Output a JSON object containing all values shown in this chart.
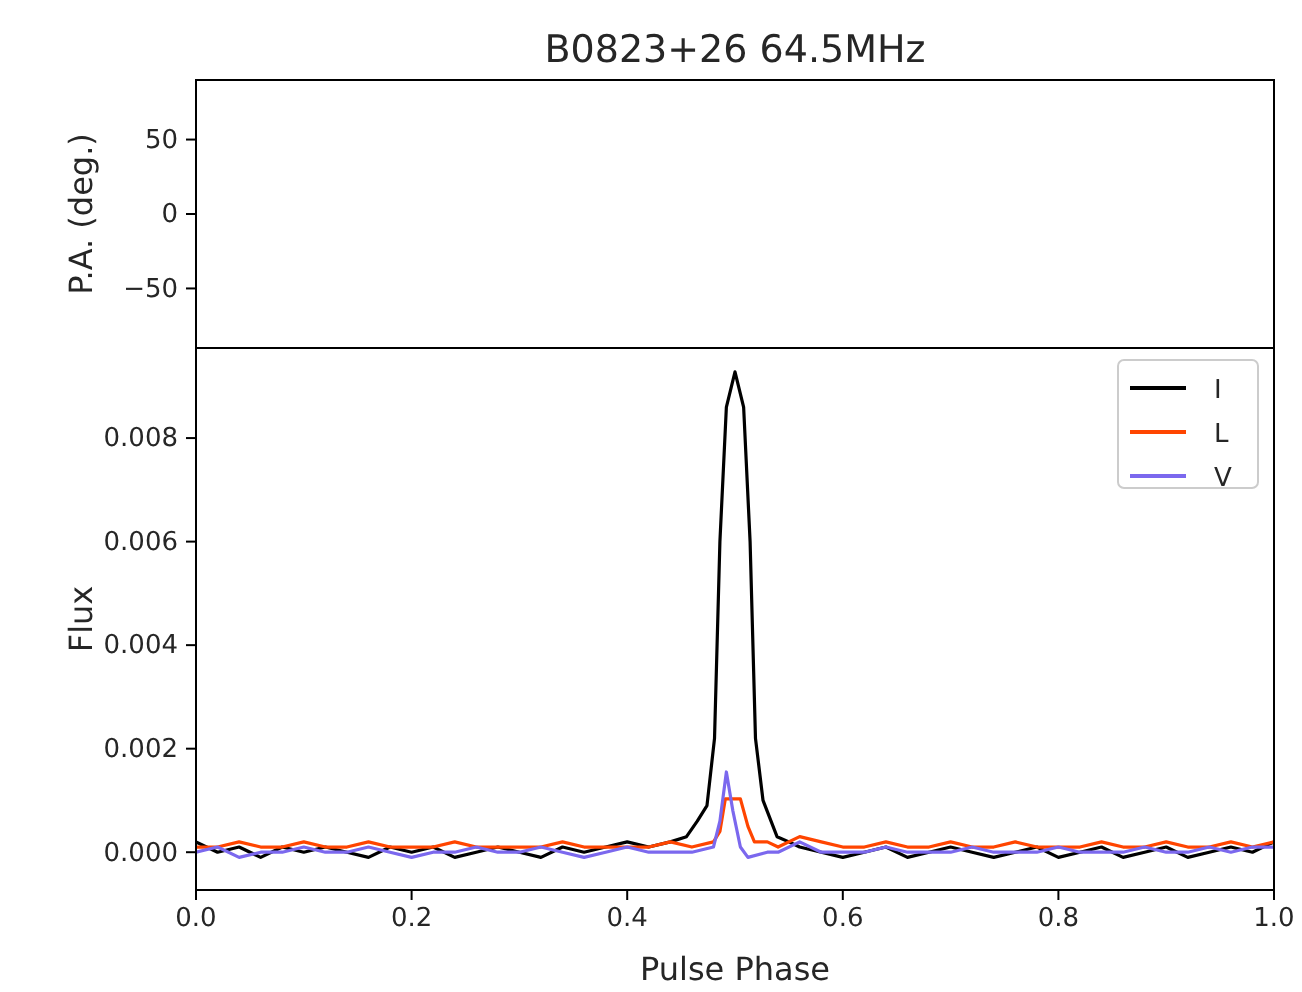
{
  "chart_data": [
    {
      "type": "line",
      "title": "B0823+26 64.5MHz",
      "ylabel": "P.A. (deg.)",
      "xlim": [
        0,
        1
      ],
      "ylim": [
        -90,
        90
      ],
      "yticks": [
        {
          "value": -50,
          "label": "−50"
        },
        0,
        50
      ],
      "tick_labels": "y"
    },
    {
      "type": "line",
      "xlabel": "Pulse Phase",
      "ylabel": "Flux",
      "xlim": [
        0,
        1
      ],
      "ylim": [
        -0.00073,
        0.00974
      ],
      "xticks": [
        {
          "value": 0,
          "label": "0.0"
        },
        {
          "value": 0.2,
          "label": "0.2"
        },
        {
          "value": 0.4,
          "label": "0.4"
        },
        {
          "value": 0.6,
          "label": "0.6"
        },
        {
          "value": 0.8,
          "label": "0.8"
        },
        {
          "value": 1,
          "label": "1.0"
        }
      ],
      "yticks": [
        {
          "value": 0,
          "label": "0.000"
        },
        {
          "value": 0.002,
          "label": "0.002"
        },
        {
          "value": 0.004,
          "label": "0.004"
        },
        {
          "value": 0.006,
          "label": "0.006"
        },
        {
          "value": 0.008,
          "label": "0.008"
        }
      ],
      "legend": "top right",
      "series": [
        {
          "name": "I",
          "color": "#000000",
          "x": [
            0,
            0.02,
            0.04,
            0.06,
            0.08,
            0.1,
            0.12,
            0.14,
            0.16,
            0.18,
            0.2,
            0.22,
            0.24,
            0.26,
            0.28,
            0.3,
            0.32,
            0.34,
            0.36,
            0.38,
            0.4,
            0.42,
            0.44,
            0.455,
            0.465,
            0.474,
            0.481,
            0.486,
            0.492,
            0.5,
            0.508,
            0.514,
            0.519,
            0.526,
            0.539,
            0.55,
            0.56,
            0.58,
            0.6,
            0.62,
            0.64,
            0.66,
            0.68,
            0.7,
            0.72,
            0.74,
            0.76,
            0.78,
            0.8,
            0.82,
            0.84,
            0.86,
            0.88,
            0.9,
            0.92,
            0.94,
            0.96,
            0.98,
            1
          ],
          "values": [
            0.0002,
            0.0,
            0.0001,
            -0.0001,
            0.0001,
            0.0,
            0.0001,
            0.0,
            -0.0001,
            0.0001,
            0.0,
            0.0001,
            -0.0001,
            0.0,
            0.0001,
            0.0,
            -0.0001,
            0.0001,
            0.0,
            0.0001,
            0.0002,
            0.0001,
            0.0002,
            0.0003,
            0.0006,
            0.0009,
            0.0022,
            0.006,
            0.0086,
            0.00928,
            0.0086,
            0.006,
            0.0022,
            0.001,
            0.0003,
            0.0002,
            0.0001,
            0.0,
            -0.0001,
            0.0,
            0.0001,
            -0.0001,
            0.0,
            0.0001,
            0.0,
            -0.0001,
            0.0,
            0.0001,
            -0.0001,
            0.0,
            0.0001,
            -0.0001,
            0.0,
            0.0001,
            -0.0001,
            0.0,
            0.0001,
            0.0,
            0.0002
          ]
        },
        {
          "name": "L",
          "color": "#ff4500",
          "x": [
            0,
            0.02,
            0.04,
            0.06,
            0.08,
            0.1,
            0.12,
            0.14,
            0.16,
            0.18,
            0.2,
            0.22,
            0.24,
            0.26,
            0.28,
            0.3,
            0.32,
            0.34,
            0.36,
            0.38,
            0.4,
            0.42,
            0.44,
            0.46,
            0.48,
            0.486,
            0.491,
            0.505,
            0.512,
            0.518,
            0.53,
            0.54,
            0.56,
            0.58,
            0.6,
            0.62,
            0.64,
            0.66,
            0.68,
            0.7,
            0.72,
            0.74,
            0.76,
            0.78,
            0.8,
            0.82,
            0.84,
            0.86,
            0.88,
            0.9,
            0.92,
            0.94,
            0.96,
            0.98,
            1
          ],
          "values": [
            0.0001,
            0.0001,
            0.0002,
            0.0001,
            0.0001,
            0.0002,
            0.0001,
            0.0001,
            0.0002,
            0.0001,
            0.0001,
            0.0001,
            0.0002,
            0.0001,
            0.0001,
            0.0001,
            0.0001,
            0.0002,
            0.0001,
            0.0001,
            0.0001,
            0.0001,
            0.0002,
            0.0001,
            0.0002,
            0.0004,
            0.00103,
            0.00103,
            0.0005,
            0.0002,
            0.0002,
            0.0001,
            0.0003,
            0.0002,
            0.0001,
            0.0001,
            0.0002,
            0.0001,
            0.0001,
            0.0002,
            0.0001,
            0.0001,
            0.0002,
            0.0001,
            0.0001,
            0.0001,
            0.0002,
            0.0001,
            0.0001,
            0.0002,
            0.0001,
            0.0001,
            0.0002,
            0.0001,
            0.0002
          ]
        },
        {
          "name": "V",
          "color": "#7b68ee",
          "x": [
            0,
            0.02,
            0.04,
            0.06,
            0.08,
            0.1,
            0.12,
            0.14,
            0.16,
            0.18,
            0.2,
            0.22,
            0.24,
            0.26,
            0.28,
            0.3,
            0.32,
            0.34,
            0.36,
            0.38,
            0.4,
            0.42,
            0.44,
            0.46,
            0.48,
            0.486,
            0.492,
            0.498,
            0.505,
            0.512,
            0.53,
            0.54,
            0.56,
            0.58,
            0.6,
            0.62,
            0.64,
            0.66,
            0.68,
            0.7,
            0.72,
            0.74,
            0.76,
            0.78,
            0.8,
            0.82,
            0.84,
            0.86,
            0.88,
            0.9,
            0.92,
            0.94,
            0.96,
            0.98,
            1
          ],
          "values": [
            0.0,
            0.0001,
            -0.0001,
            0.0,
            0.0,
            0.0001,
            0.0,
            0.0,
            0.0001,
            0.0,
            -0.0001,
            0.0,
            0.0,
            0.0001,
            0.0,
            0.0,
            0.0001,
            0.0,
            -0.0001,
            0.0,
            0.0001,
            0.0,
            0.0,
            0.0,
            0.0001,
            0.0006,
            0.00155,
            0.0008,
            0.0001,
            -0.0001,
            0.0,
            0.0,
            0.0002,
            0.0,
            0.0,
            0.0,
            0.0001,
            0.0,
            0.0,
            0.0,
            0.0001,
            0.0,
            0.0,
            0.0,
            0.0001,
            0.0,
            0.0,
            0.0,
            0.0001,
            0.0,
            0.0,
            0.0001,
            0.0,
            0.0001,
            0.0001
          ]
        }
      ]
    }
  ]
}
